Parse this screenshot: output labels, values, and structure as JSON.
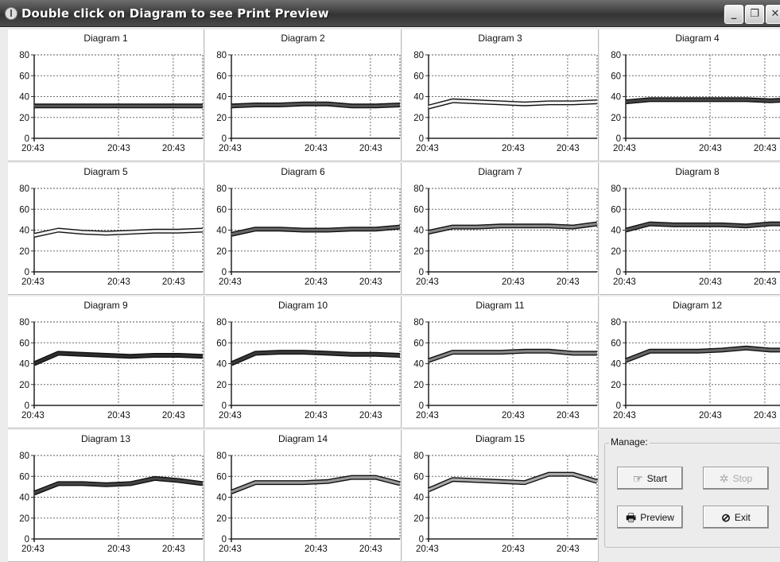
{
  "window": {
    "title": "Double click on Diagram to see Print Preview",
    "controls": [
      "minimize-icon",
      "restore-icon",
      "close-icon"
    ]
  },
  "y_axis_ticks": [
    "0",
    "20",
    "40",
    "60",
    "80"
  ],
  "x_axis_ticks": [
    "20:43",
    "20:43",
    "20:43"
  ],
  "diagrams": [
    {
      "title": "Diagram 1"
    },
    {
      "title": "Diagram 2"
    },
    {
      "title": "Diagram 3"
    },
    {
      "title": "Diagram 4"
    },
    {
      "title": "Diagram 5"
    },
    {
      "title": "Diagram 6"
    },
    {
      "title": "Diagram 7"
    },
    {
      "title": "Diagram 8"
    },
    {
      "title": "Diagram 9"
    },
    {
      "title": "Diagram 10"
    },
    {
      "title": "Diagram 11"
    },
    {
      "title": "Diagram 12"
    },
    {
      "title": "Diagram 13"
    },
    {
      "title": "Diagram 14"
    },
    {
      "title": "Diagram 15"
    }
  ],
  "chart_data": [
    {
      "type": "line",
      "title": "Diagram 1",
      "ylim": [
        0,
        80
      ],
      "grid": true,
      "line_color": "#555555",
      "values": [
        31,
        31,
        31,
        31,
        31,
        31,
        31,
        31
      ]
    },
    {
      "type": "line",
      "title": "Diagram 2",
      "ylim": [
        0,
        80
      ],
      "grid": true,
      "line_color": "#555555",
      "values": [
        31,
        32,
        32,
        33,
        33,
        31,
        31,
        32
      ]
    },
    {
      "type": "line",
      "title": "Diagram 3",
      "ylim": [
        0,
        80
      ],
      "grid": true,
      "line_color": "#f2f2f2",
      "values": [
        30,
        36,
        35,
        34,
        33,
        34,
        34,
        35
      ]
    },
    {
      "type": "line",
      "title": "Diagram 4",
      "ylim": [
        0,
        80
      ],
      "grid": true,
      "line_color": "#444444",
      "values": [
        35,
        37,
        37,
        37,
        37,
        37,
        36,
        37
      ]
    },
    {
      "type": "line",
      "title": "Diagram 5",
      "ylim": [
        0,
        80
      ],
      "grid": true,
      "line_color": "#f2f2f2",
      "values": [
        35,
        40,
        38,
        37,
        38,
        39,
        39,
        40
      ]
    },
    {
      "type": "line",
      "title": "Diagram 6",
      "ylim": [
        0,
        80
      ],
      "grid": true,
      "line_color": "#666666",
      "values": [
        36,
        41,
        41,
        40,
        40,
        41,
        41,
        43
      ]
    },
    {
      "type": "line",
      "title": "Diagram 7",
      "ylim": [
        0,
        80
      ],
      "grid": true,
      "line_color": "#888888",
      "values": [
        38,
        43,
        43,
        44,
        44,
        44,
        43,
        46
      ]
    },
    {
      "type": "line",
      "title": "Diagram 8",
      "ylim": [
        0,
        80
      ],
      "grid": true,
      "line_color": "#555555",
      "values": [
        40,
        46,
        45,
        45,
        45,
        44,
        46,
        46
      ]
    },
    {
      "type": "line",
      "title": "Diagram 9",
      "ylim": [
        0,
        80
      ],
      "grid": true,
      "line_color": "#2e2e2e",
      "values": [
        40,
        50,
        49,
        48,
        47,
        48,
        48,
        47
      ]
    },
    {
      "type": "line",
      "title": "Diagram 10",
      "ylim": [
        0,
        80
      ],
      "grid": true,
      "line_color": "#3a3a3a",
      "values": [
        40,
        50,
        51,
        51,
        50,
        49,
        49,
        48
      ]
    },
    {
      "type": "line",
      "title": "Diagram 11",
      "ylim": [
        0,
        80
      ],
      "grid": true,
      "line_color": "#888888",
      "values": [
        43,
        51,
        51,
        51,
        52,
        52,
        50,
        50
      ]
    },
    {
      "type": "line",
      "title": "Diagram 12",
      "ylim": [
        0,
        80
      ],
      "grid": true,
      "line_color": "#666666",
      "values": [
        43,
        52,
        52,
        52,
        53,
        55,
        53,
        53
      ]
    },
    {
      "type": "line",
      "title": "Diagram 13",
      "ylim": [
        0,
        80
      ],
      "grid": true,
      "line_color": "#444444",
      "values": [
        44,
        53,
        53,
        52,
        53,
        58,
        56,
        53
      ]
    },
    {
      "type": "line",
      "title": "Diagram 14",
      "ylim": [
        0,
        80
      ],
      "grid": true,
      "line_color": "#999999",
      "values": [
        45,
        54,
        54,
        54,
        55,
        59,
        59,
        53
      ]
    },
    {
      "type": "line",
      "title": "Diagram 15",
      "ylim": [
        0,
        80
      ],
      "grid": true,
      "line_color": "#aaaaaa",
      "values": [
        47,
        57,
        56,
        55,
        54,
        62,
        62,
        55
      ]
    }
  ],
  "manage": {
    "legend": "Manage:",
    "start_label": "Start",
    "stop_label": "Stop",
    "preview_label": "Preview",
    "exit_label": "Exit"
  }
}
